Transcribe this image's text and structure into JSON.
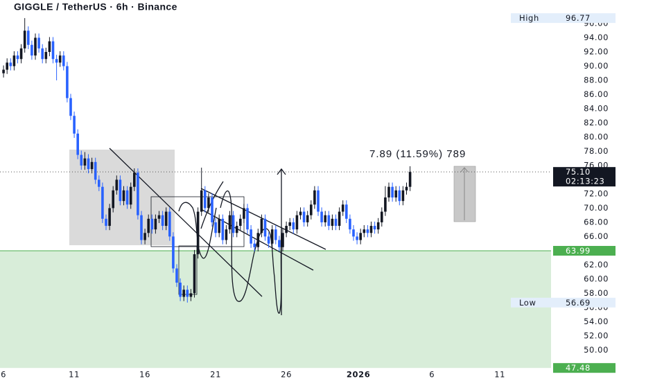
{
  "chart_data": {
    "type": "candlestick",
    "title": "GIGGLE / TetherUS · 6h · Binance",
    "x": [
      0,
      0.25,
      0.5,
      0.75,
      1,
      1.25,
      1.5,
      1.75,
      2,
      2.25,
      2.5,
      2.75,
      3,
      3.25,
      3.5,
      3.75,
      4,
      4.25,
      4.5,
      4.75,
      5,
      5.25,
      5.5,
      5.75,
      6,
      6.25,
      6.5,
      6.75,
      7,
      7.25,
      7.5,
      7.75,
      8,
      8.25,
      8.5,
      8.75,
      9,
      9.25,
      9.5,
      9.75,
      10,
      10.25,
      10.5,
      10.75,
      11,
      11.25,
      11.5,
      11.75,
      12,
      12.25,
      12.5,
      12.75,
      13,
      13.25,
      13.5,
      13.75,
      14,
      14.25,
      14.5,
      14.75,
      15,
      15.25,
      15.5,
      15.75,
      16,
      16.25,
      16.5,
      16.75,
      17,
      17.25,
      17.5,
      17.75,
      18,
      18.25,
      18.5,
      18.75,
      19,
      19.25,
      19.5,
      19.75,
      20,
      20.25,
      20.5,
      20.75,
      21,
      21.25,
      21.5,
      21.75,
      22,
      22.25,
      22.5,
      22.75,
      23,
      23.25,
      23.5,
      23.75,
      24,
      24.25,
      24.5,
      24.75,
      25,
      25.25,
      25.5,
      25.75,
      26,
      26.25,
      26.5,
      26.75,
      27,
      27.25,
      27.5,
      27.75,
      28,
      28.25,
      28.5,
      28.75
    ],
    "open": [
      89.0,
      89.5,
      90.5,
      90.0,
      91.5,
      91.0,
      92.5,
      95.0,
      93.0,
      91.5,
      94.0,
      92.5,
      91.0,
      92.0,
      93.5,
      91.0,
      90.5,
      91.5,
      90.0,
      85.5,
      83.0,
      80.5,
      77.5,
      76.0,
      77.0,
      75.5,
      76.5,
      74.0,
      73.0,
      68.5,
      67.5,
      70.0,
      72.5,
      74.0,
      71.0,
      72.5,
      70.5,
      73.0,
      75.0,
      69.0,
      65.5,
      66.5,
      68.5,
      67.0,
      68.5,
      69.0,
      67.5,
      69.5,
      66.0,
      61.5,
      59.5,
      57.5,
      58.5,
      57.5,
      58.0,
      63.5,
      69.5,
      72.5,
      70.0,
      71.5,
      68.0,
      66.5,
      68.5,
      65.5,
      67.0,
      69.0,
      66.5,
      67.5,
      68.5,
      70.0,
      67.0,
      65.0,
      64.5,
      66.5,
      68.5,
      66.0,
      65.0,
      67.0,
      65.5,
      64.5,
      66.5,
      67.5,
      68.0,
      67.0,
      69.0,
      69.5,
      68.0,
      69.0,
      70.5,
      72.5,
      69.5,
      68.0,
      69.0,
      67.5,
      68.5,
      67.5,
      69.5,
      70.5,
      68.5,
      67.0,
      66.0,
      65.5,
      66.5,
      67.0,
      66.5,
      67.5,
      67.0,
      68.0,
      69.5,
      71.5,
      73.0,
      71.5,
      72.5,
      71.0,
      72.5,
      73.0
    ],
    "high": [
      90.1,
      91.1,
      91.1,
      92.1,
      92.1,
      93.1,
      96.77,
      95.6,
      93.6,
      94.6,
      94.6,
      93.1,
      92.6,
      94.1,
      94.1,
      91.6,
      92.1,
      92.1,
      90.6,
      86.1,
      83.6,
      81.1,
      78.1,
      77.9,
      77.6,
      77.1,
      77.1,
      74.6,
      73.6,
      69.1,
      70.6,
      73.1,
      74.6,
      74.6,
      73.1,
      73.1,
      73.6,
      75.6,
      75.6,
      69.6,
      67.1,
      69.1,
      69.1,
      69.1,
      69.6,
      69.6,
      70.1,
      70.1,
      66.6,
      62.1,
      60.1,
      59.1,
      59.1,
      58.6,
      64.1,
      70.1,
      75.7,
      73.1,
      72.1,
      72.1,
      68.6,
      69.1,
      69.1,
      67.6,
      69.6,
      69.6,
      68.1,
      69.1,
      70.6,
      70.6,
      67.6,
      65.6,
      67.1,
      69.1,
      69.1,
      66.6,
      67.6,
      67.6,
      66.1,
      67.1,
      68.1,
      68.6,
      68.6,
      69.6,
      70.1,
      70.1,
      69.6,
      71.1,
      73.1,
      73.1,
      70.1,
      69.6,
      69.6,
      69.1,
      69.1,
      70.1,
      71.1,
      71.1,
      69.1,
      67.6,
      66.6,
      67.1,
      67.6,
      67.6,
      68.1,
      68.1,
      68.6,
      70.1,
      73.1,
      73.6,
      73.6,
      73.1,
      73.1,
      73.1,
      73.6,
      75.9
    ],
    "low": [
      88.4,
      88.9,
      89.4,
      89.4,
      90.4,
      90.4,
      91.9,
      92.4,
      90.9,
      90.9,
      91.9,
      90.4,
      90.4,
      91.4,
      90.4,
      88.0,
      89.9,
      89.4,
      84.9,
      82.4,
      79.9,
      76.9,
      75.4,
      75.4,
      74.9,
      74.9,
      73.4,
      72.4,
      67.9,
      66.9,
      66.9,
      69.4,
      71.9,
      70.4,
      70.4,
      69.9,
      69.9,
      72.4,
      68.4,
      64.9,
      64.9,
      65.9,
      66.4,
      66.4,
      67.9,
      66.9,
      66.9,
      65.4,
      60.9,
      58.9,
      56.9,
      56.9,
      56.69,
      56.9,
      57.4,
      62.9,
      68.9,
      69.4,
      69.4,
      67.4,
      65.9,
      65.9,
      64.9,
      64.9,
      66.4,
      65.9,
      65.9,
      66.9,
      67.9,
      66.4,
      64.4,
      63.9,
      63.9,
      65.9,
      65.4,
      64.4,
      64.4,
      64.9,
      63.9,
      63.9,
      65.9,
      66.9,
      66.4,
      66.4,
      68.4,
      67.4,
      67.4,
      68.4,
      69.9,
      68.9,
      67.4,
      67.4,
      66.9,
      66.9,
      66.9,
      66.9,
      68.9,
      67.9,
      66.4,
      65.4,
      64.9,
      64.9,
      65.9,
      65.9,
      65.9,
      66.4,
      66.4,
      67.4,
      68.9,
      70.9,
      70.9,
      70.9,
      70.4,
      70.4,
      71.9,
      72.4
    ],
    "close": [
      89.5,
      90.5,
      90.0,
      91.5,
      91.0,
      92.5,
      95.0,
      93.0,
      91.5,
      94.0,
      92.5,
      91.0,
      92.0,
      93.5,
      91.0,
      90.5,
      91.5,
      90.0,
      85.5,
      83.0,
      80.5,
      77.5,
      76.0,
      77.0,
      75.5,
      76.5,
      74.0,
      73.0,
      68.5,
      67.5,
      70.0,
      72.5,
      74.0,
      71.0,
      72.5,
      70.5,
      73.0,
      75.0,
      69.0,
      65.5,
      66.5,
      68.5,
      67.0,
      68.5,
      69.0,
      67.5,
      69.5,
      66.0,
      61.5,
      59.5,
      57.5,
      58.5,
      57.5,
      58.0,
      63.5,
      69.5,
      72.5,
      70.0,
      71.5,
      68.0,
      66.5,
      68.5,
      65.5,
      67.0,
      69.0,
      66.5,
      67.5,
      68.5,
      70.0,
      67.0,
      65.0,
      64.5,
      66.5,
      68.5,
      66.0,
      65.0,
      67.0,
      65.5,
      64.5,
      66.5,
      67.5,
      68.0,
      67.0,
      69.0,
      69.5,
      68.0,
      69.0,
      70.5,
      72.5,
      69.5,
      68.0,
      69.0,
      67.5,
      68.5,
      67.5,
      69.5,
      70.5,
      68.5,
      67.0,
      66.0,
      65.5,
      66.5,
      67.0,
      66.5,
      67.5,
      67.0,
      68.0,
      69.5,
      71.5,
      73.0,
      71.5,
      72.5,
      71.0,
      72.5,
      73.0,
      75.1
    ],
    "up_color": "#131722",
    "down_color": "#2962ff",
    "xlim": [
      -0.25,
      38.72
    ],
    "xticks": [
      {
        "value": 0,
        "label": "6"
      },
      {
        "value": 5,
        "label": "11"
      },
      {
        "value": 10,
        "label": "16"
      },
      {
        "value": 15,
        "label": "21"
      },
      {
        "value": 20,
        "label": "26"
      },
      {
        "value": 25.1,
        "label": "2026"
      },
      {
        "value": 30.3,
        "label": "6"
      },
      {
        "value": 35.1,
        "label": "11"
      }
    ],
    "ylim": [
      47.4,
      99.32
    ],
    "yticks": [
      {
        "value": 50,
        "label": "50.00"
      },
      {
        "value": 52,
        "label": "52.00"
      },
      {
        "value": 54,
        "label": "54.00"
      },
      {
        "value": 56,
        "label": "56.00"
      },
      {
        "value": 58,
        "label": "58.00"
      },
      {
        "value": 60,
        "label": "60.00"
      },
      {
        "value": 62,
        "label": "62.00"
      },
      {
        "value": 66,
        "label": "66.00"
      },
      {
        "value": 68,
        "label": "68.00"
      },
      {
        "value": 70,
        "label": "70.00"
      },
      {
        "value": 72,
        "label": "72.00"
      },
      {
        "value": 76,
        "label": "76.00"
      },
      {
        "value": 78,
        "label": "78.00"
      },
      {
        "value": 80,
        "label": "80.00"
      },
      {
        "value": 82,
        "label": "82.00"
      },
      {
        "value": 84,
        "label": "84.00"
      },
      {
        "value": 86,
        "label": "86.00"
      },
      {
        "value": 88,
        "label": "88.00"
      },
      {
        "value": 90,
        "label": "90.00"
      },
      {
        "value": 92,
        "label": "92.00"
      },
      {
        "value": 94,
        "label": "94.00"
      },
      {
        "value": 96,
        "label": "96.00"
      }
    ],
    "support_zone": [
      47.48,
      63.99
    ],
    "support_color": "#4caf50",
    "high_marker": {
      "label": "High",
      "value": 96.77
    },
    "low_marker": {
      "label": "Low",
      "value": 56.69
    },
    "last_price": {
      "value": 75.1,
      "label": "75.10"
    },
    "countdown": "02:13:23",
    "measure_label": "7.89 (11.59%) 789"
  }
}
